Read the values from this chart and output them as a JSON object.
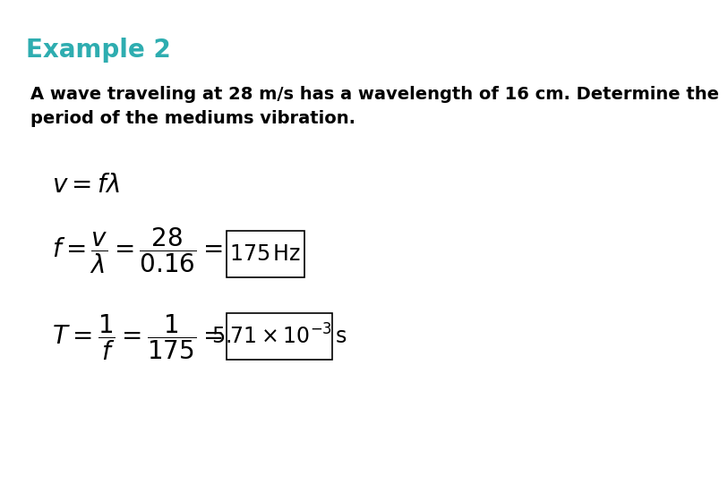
{
  "title": "Example 2",
  "title_color": "#2EADB0",
  "body_text": "A wave traveling at 28 m/s has a wavelength of 16 cm. Determine the\nperiod of the mediums vibration.",
  "background_color": "#ffffff",
  "text_color": "#000000",
  "eq1": "v= f \\lambda",
  "eq2_lhs": "f = \\dfrac{v}{\\lambda} = \\dfrac{28}{0.16} =",
  "eq2_result": "175 Hz",
  "eq3_lhs": "T = \\dfrac{1}{f} = \\dfrac{1}{175} =",
  "eq3_result": "5.71\\times10^{-3}\\,\\mathrm{s}",
  "title_fontsize": 20,
  "body_fontsize": 14,
  "eq_fontsize": 18,
  "result_fontsize": 16
}
